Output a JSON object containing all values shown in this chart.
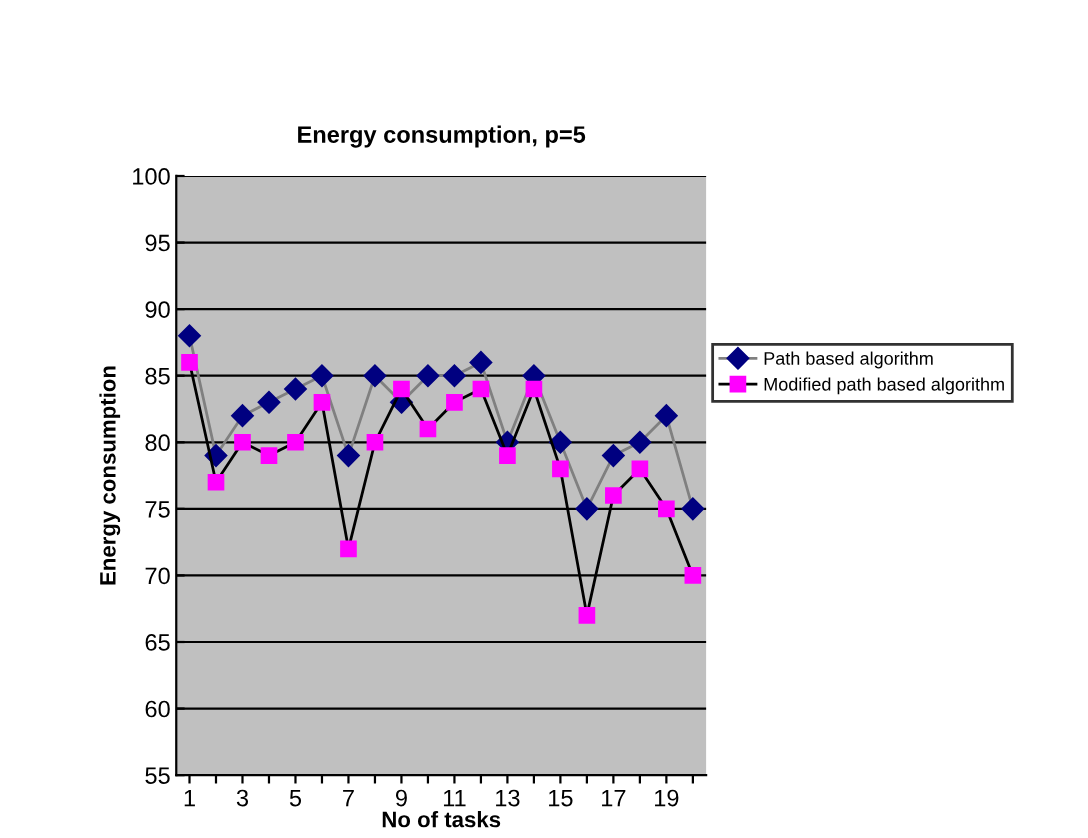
{
  "chart_data": {
    "type": "line",
    "title": "Energy consumption, p=5",
    "xlabel": "No of tasks",
    "ylabel": "Energy consumption",
    "categories": [
      "1",
      null,
      "3",
      null,
      "5",
      null,
      "7",
      null,
      "9",
      null,
      "11",
      null,
      "13",
      null,
      "15",
      null,
      "17",
      null,
      "19",
      null
    ],
    "series": [
      {
        "name": "Path based algorithm",
        "color": "#000080",
        "marker": "diamond",
        "values": [
          88,
          79,
          82,
          83,
          84,
          85,
          79,
          85,
          83,
          85,
          85,
          86,
          80,
          85,
          80,
          75,
          79,
          80,
          82,
          75
        ]
      },
      {
        "name": "Modified path based algorithm",
        "color": "#ff00ff",
        "marker": "square",
        "values": [
          86,
          77,
          80,
          79,
          80,
          83,
          72,
          80,
          84,
          81,
          83,
          84,
          79,
          84,
          78,
          67,
          76,
          78,
          75,
          70
        ]
      }
    ],
    "ylim": [
      55,
      100
    ],
    "yticks": [
      55,
      60,
      65,
      70,
      75,
      80,
      85,
      90,
      95,
      100
    ],
    "grid": "y",
    "legend": "right"
  }
}
